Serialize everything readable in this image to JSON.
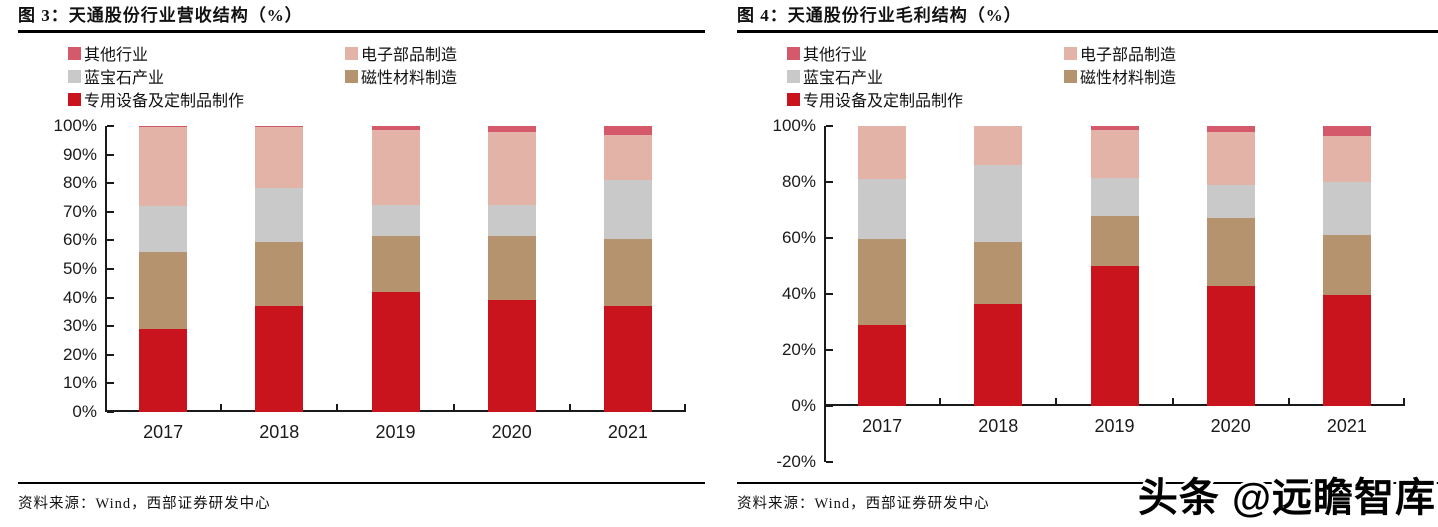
{
  "colors": {
    "special": "#C9141E",
    "magnetic": "#B5936F",
    "sapphire": "#C9C9C9",
    "electronics": "#E4B3A7",
    "other": "#D4596B",
    "axis": "#1A1A1A"
  },
  "watermark": "头条 @远瞻智库",
  "panels": [
    {
      "title": "图 3：天通股份行业营收结构（%）",
      "source": "资料来源：Wind，西部证券研发中心",
      "legend": [
        {
          "label": "其他行业",
          "color_key": "other"
        },
        {
          "label": "电子部品制造",
          "color_key": "electronics"
        },
        {
          "label": "蓝宝石产业",
          "color_key": "sapphire"
        },
        {
          "label": "磁性材料制造",
          "color_key": "magnetic"
        },
        {
          "label": "专用设备及定制品制作",
          "color_key": "special"
        }
      ]
    },
    {
      "title": "图 4：天通股份行业毛利结构（%）",
      "source": "资料来源：Wind，西部证券研发中心",
      "legend": [
        {
          "label": "其他行业",
          "color_key": "other"
        },
        {
          "label": "电子部品制造",
          "color_key": "electronics"
        },
        {
          "label": "蓝宝石产业",
          "color_key": "sapphire"
        },
        {
          "label": "磁性材料制造",
          "color_key": "magnetic"
        },
        {
          "label": "专用设备及定制品制作",
          "color_key": "special"
        }
      ]
    }
  ],
  "chart_data": [
    {
      "type": "bar",
      "subtype": "stacked-100",
      "title": "天通股份行业营收结构（%）",
      "unit": "%",
      "categories": [
        "2017",
        "2018",
        "2019",
        "2020",
        "2021"
      ],
      "series": [
        {
          "name": "专用设备及定制品制作",
          "color_key": "special",
          "values": [
            29,
            37,
            42,
            39,
            37
          ]
        },
        {
          "name": "磁性材料制造",
          "color_key": "magnetic",
          "values": [
            27,
            22.5,
            19.5,
            22.5,
            23.5
          ]
        },
        {
          "name": "蓝宝石产业",
          "color_key": "sapphire",
          "values": [
            16,
            19,
            11,
            11,
            20.5
          ]
        },
        {
          "name": "电子部品制造",
          "color_key": "electronics",
          "values": [
            27.5,
            21,
            26,
            25.5,
            16
          ]
        },
        {
          "name": "其他行业",
          "color_key": "other",
          "values": [
            0.5,
            0.5,
            1.5,
            2,
            3
          ]
        }
      ],
      "ylim": [
        0,
        100
      ],
      "yticks": [
        100,
        90,
        80,
        70,
        60,
        50,
        40,
        30,
        20,
        10,
        0
      ],
      "ytick_suffix": "%",
      "legend_position": "top",
      "grid": false
    },
    {
      "type": "bar",
      "subtype": "stacked-100",
      "title": "天通股份行业毛利结构（%）",
      "unit": "%",
      "categories": [
        "2017",
        "2018",
        "2019",
        "2020",
        "2021"
      ],
      "series": [
        {
          "name": "专用设备及定制品制作",
          "color_key": "special",
          "values": [
            29,
            36.5,
            50,
            43,
            39.5
          ]
        },
        {
          "name": "磁性材料制造",
          "color_key": "magnetic",
          "values": [
            30.5,
            22,
            18,
            24,
            21.5
          ]
        },
        {
          "name": "蓝宝石产业",
          "color_key": "sapphire",
          "values": [
            21.5,
            27.5,
            13.5,
            12,
            19
          ]
        },
        {
          "name": "电子部品制造",
          "color_key": "electronics",
          "values": [
            19,
            14,
            17,
            19,
            16.5
          ]
        },
        {
          "name": "其他行业",
          "color_key": "other",
          "values": [
            0,
            0,
            1.5,
            2,
            3.5
          ]
        }
      ],
      "ylim": [
        -20,
        100
      ],
      "yticks": [
        100,
        80,
        60,
        40,
        20,
        0,
        -20
      ],
      "ytick_suffix": "%",
      "legend_position": "top",
      "grid": false
    }
  ]
}
